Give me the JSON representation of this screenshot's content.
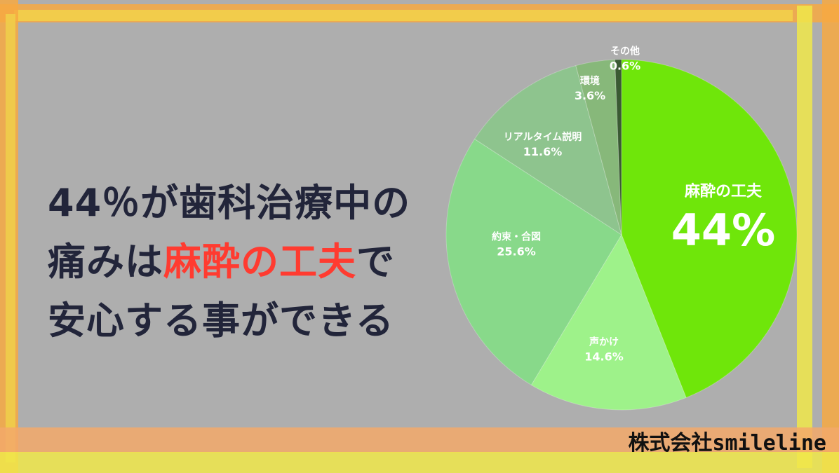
{
  "headline": {
    "line1": "44％が歯科治療中の",
    "line2_a": "痛みは",
    "line2_highlight": "麻酔の工夫",
    "line2_b": "で",
    "line3": "安心する事ができる"
  },
  "company": "株式会社smileline",
  "colors": {
    "background": "#aeaeae",
    "frame_orange": "#f7a942",
    "frame_yellow": "#f0e84a",
    "headline_text": "#22253a",
    "highlight": "#ff3b30"
  },
  "chart_data": {
    "type": "pie",
    "slices": [
      {
        "label": "麻酔の工夫",
        "value": 44,
        "display": "44%",
        "color": "#6fe60a"
      },
      {
        "label": "声かけ",
        "value": 14.6,
        "display": "14.6%",
        "color": "#9ef28a"
      },
      {
        "label": "約束・合図",
        "value": 25.6,
        "display": "25.6%",
        "color": "#88d98a"
      },
      {
        "label": "リアルタイム説明",
        "value": 11.6,
        "display": "11.6%",
        "color": "#8ec48e"
      },
      {
        "label": "環境",
        "value": 3.6,
        "display": "3.6%",
        "color": "#87b87a"
      },
      {
        "label": "その他",
        "value": 0.6,
        "display": "0.6%",
        "color": "#3a5a33"
      }
    ]
  }
}
